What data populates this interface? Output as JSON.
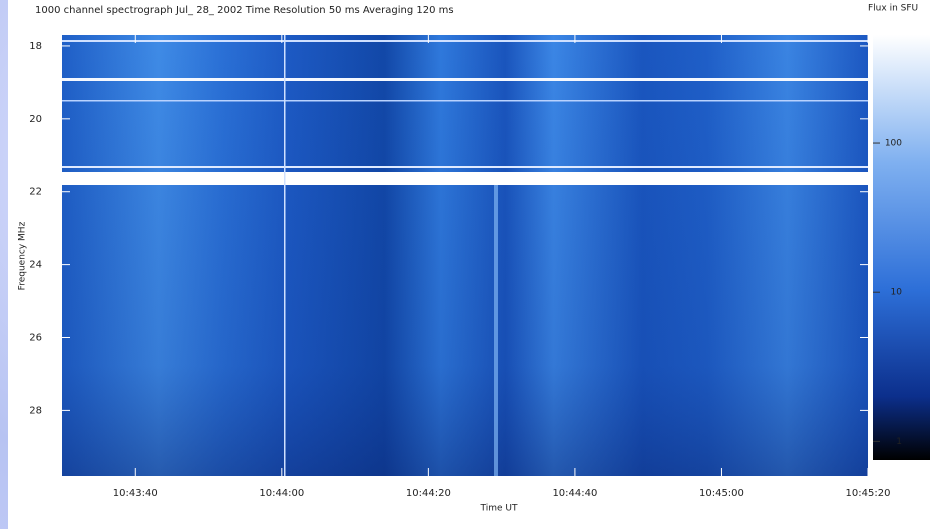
{
  "chart_data": {
    "type": "spectrogram",
    "title": "1000 channel spectrograph   Jul_ 28_ 2002   Time Resolution  50 ms    Averaging  120 ms",
    "x_label": "Time UT",
    "y_label": "Frequency MHz",
    "xlim": [
      "10:43:30",
      "10:45:20"
    ],
    "xticks": [
      "10:43:40",
      "10:44:00",
      "10:44:20",
      "10:44:40",
      "10:45:00",
      "10:45:20"
    ],
    "ylim": [
      17.7,
      29.8
    ],
    "yticks": [
      18,
      20,
      22,
      24,
      26,
      28
    ],
    "y_inverted": true,
    "colorbar": {
      "label": "Flux in SFU",
      "lim": [
        0.75,
        530
      ],
      "ticks": [
        1,
        10,
        100
      ],
      "log": true
    }
  }
}
